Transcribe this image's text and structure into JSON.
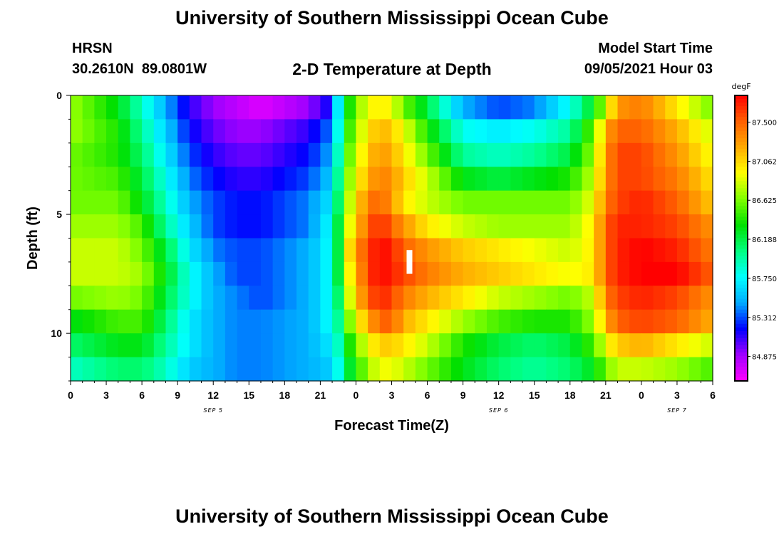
{
  "page": {
    "title": "University of Southern Mississippi Ocean Cube",
    "footer_title": "University of Southern Mississippi Ocean Cube",
    "station": "HRSN",
    "coords": "30.2610N  89.0801W",
    "subtitle": "2-D Temperature at Depth",
    "model_label": "Model Start Time",
    "model_time": "09/05/2021 Hour 03"
  },
  "chart_data": {
    "type": "heatmap",
    "title": "2-D Temperature at Depth",
    "xlabel": "Forecast Time(Z)",
    "ylabel": "Depth (ft)",
    "x_tick_labels": [
      "0",
      "3",
      "6",
      "9",
      "12",
      "15",
      "18",
      "21",
      "0",
      "3",
      "6",
      "9",
      "12",
      "15",
      "18",
      "21",
      "0",
      "3",
      "6"
    ],
    "x_date_labels": [
      "SEP 5",
      "SEP 6",
      "SEP 7"
    ],
    "x_range_hours": [
      0,
      54
    ],
    "date_label_hours": [
      12,
      36,
      51
    ],
    "y_ticks": [
      0,
      5,
      10
    ],
    "y_range": [
      0,
      12
    ],
    "y_inverted": true,
    "colorbar": {
      "unit": "degF",
      "labels": [
        "87.500",
        "87.062",
        "86.625",
        "86.188",
        "85.750",
        "85.312",
        "84.875"
      ],
      "range": [
        84.6,
        87.8
      ],
      "colors": [
        "#ff00ff",
        "#a000ff",
        "#0000ff",
        "#00aaff",
        "#00ffff",
        "#00ff80",
        "#00e000",
        "#80ff00",
        "#ffff00",
        "#ffaa00",
        "#ff6000",
        "#ff0000"
      ]
    },
    "depth_rows_ft": [
      0.5,
      1.5,
      2.5,
      3.5,
      4.5,
      5.5,
      6.5,
      7.5,
      8.5,
      9.5,
      10.5,
      11.5
    ],
    "time_knots_hours": [
      0,
      4,
      6,
      8,
      10,
      12,
      14,
      16,
      20,
      22,
      22.5,
      23,
      24,
      25,
      26,
      27,
      28,
      30,
      33,
      36,
      39,
      42,
      44,
      45,
      46,
      48,
      51,
      54
    ],
    "values_degF": [
      [
        86.7,
        86.3,
        85.9,
        85.5,
        85.1,
        84.9,
        84.8,
        84.7,
        84.9,
        85.2,
        85.7,
        86.2,
        86.6,
        86.9,
        87.0,
        86.9,
        86.6,
        86.2,
        85.5,
        85.3,
        85.4,
        85.8,
        86.3,
        86.8,
        87.3,
        87.4,
        87.0,
        86.6
      ],
      [
        86.7,
        86.4,
        86.0,
        85.6,
        85.2,
        85.0,
        84.9,
        84.9,
        85.1,
        85.4,
        85.8,
        86.3,
        86.7,
        87.0,
        87.2,
        87.1,
        86.9,
        86.4,
        85.8,
        85.7,
        85.8,
        86.0,
        86.6,
        87.2,
        87.5,
        87.5,
        87.2,
        86.8
      ],
      [
        86.6,
        86.4,
        86.1,
        85.7,
        85.3,
        85.1,
        85.0,
        85.0,
        85.2,
        85.5,
        85.9,
        86.4,
        86.8,
        87.1,
        87.3,
        87.2,
        87.0,
        86.6,
        86.0,
        85.9,
        86.0,
        86.2,
        86.7,
        87.3,
        87.6,
        87.6,
        87.3,
        86.9
      ],
      [
        86.6,
        86.5,
        86.2,
        85.8,
        85.4,
        85.2,
        85.1,
        85.1,
        85.3,
        85.6,
        86.0,
        86.5,
        86.9,
        87.2,
        87.4,
        87.3,
        87.1,
        86.8,
        86.3,
        86.2,
        86.3,
        86.4,
        86.8,
        87.3,
        87.6,
        87.6,
        87.4,
        87.0
      ],
      [
        86.6,
        86.6,
        86.3,
        85.9,
        85.5,
        85.3,
        85.2,
        85.2,
        85.4,
        85.7,
        86.1,
        86.6,
        87.0,
        87.4,
        87.5,
        87.3,
        87.0,
        86.8,
        86.6,
        86.6,
        86.6,
        86.6,
        86.9,
        87.4,
        87.6,
        87.7,
        87.5,
        87.1
      ],
      [
        86.7,
        86.7,
        86.5,
        86.0,
        85.6,
        85.3,
        85.2,
        85.2,
        85.4,
        85.8,
        86.2,
        86.7,
        87.1,
        87.5,
        87.7,
        87.5,
        87.3,
        87.0,
        86.8,
        86.7,
        86.7,
        86.7,
        87.0,
        87.5,
        87.7,
        87.7,
        87.6,
        87.3
      ],
      [
        86.8,
        86.8,
        86.6,
        86.2,
        85.7,
        85.4,
        85.3,
        85.3,
        85.5,
        85.8,
        86.2,
        86.8,
        87.3,
        87.6,
        87.8,
        87.7,
        87.5,
        87.3,
        87.1,
        87.0,
        86.9,
        86.8,
        87.0,
        87.5,
        87.7,
        87.8,
        87.7,
        87.4
      ],
      [
        86.8,
        86.8,
        86.7,
        86.3,
        85.8,
        85.5,
        85.3,
        85.3,
        85.5,
        85.8,
        86.2,
        86.7,
        87.2,
        87.6,
        87.8,
        87.7,
        87.6,
        87.4,
        87.2,
        87.1,
        87.0,
        86.9,
        87.0,
        87.5,
        87.7,
        87.8,
        87.8,
        87.5
      ],
      [
        86.6,
        86.7,
        86.6,
        86.2,
        85.8,
        85.5,
        85.4,
        85.3,
        85.5,
        85.8,
        86.1,
        86.6,
        87.1,
        87.5,
        87.7,
        87.6,
        87.4,
        87.2,
        87.0,
        86.8,
        86.7,
        86.6,
        86.8,
        87.4,
        87.6,
        87.7,
        87.6,
        87.3
      ],
      [
        86.3,
        86.5,
        86.5,
        86.1,
        85.7,
        85.5,
        85.4,
        85.4,
        85.5,
        85.8,
        86.0,
        86.4,
        86.9,
        87.2,
        87.5,
        87.5,
        87.2,
        87.0,
        86.7,
        86.5,
        86.4,
        86.4,
        86.7,
        87.2,
        87.5,
        87.6,
        87.5,
        87.2
      ],
      [
        86.1,
        86.3,
        86.3,
        86.0,
        85.7,
        85.5,
        85.4,
        85.4,
        85.5,
        85.7,
        85.9,
        86.2,
        86.6,
        86.9,
        87.1,
        87.1,
        87.0,
        86.8,
        86.4,
        86.2,
        86.1,
        86.2,
        86.5,
        86.9,
        87.1,
        87.2,
        87.0,
        86.8
      ],
      [
        85.9,
        86.1,
        86.1,
        85.9,
        85.6,
        85.5,
        85.4,
        85.4,
        85.5,
        85.6,
        85.8,
        86.1,
        86.4,
        86.7,
        86.9,
        86.9,
        86.8,
        86.6,
        86.3,
        86.1,
        86.0,
        86.1,
        86.3,
        86.6,
        86.8,
        86.8,
        86.7,
        86.5
      ]
    ],
    "marker": {
      "hour": 28.5,
      "depth_ft": [
        6.5,
        7.5
      ],
      "color": "#ffffff"
    }
  }
}
